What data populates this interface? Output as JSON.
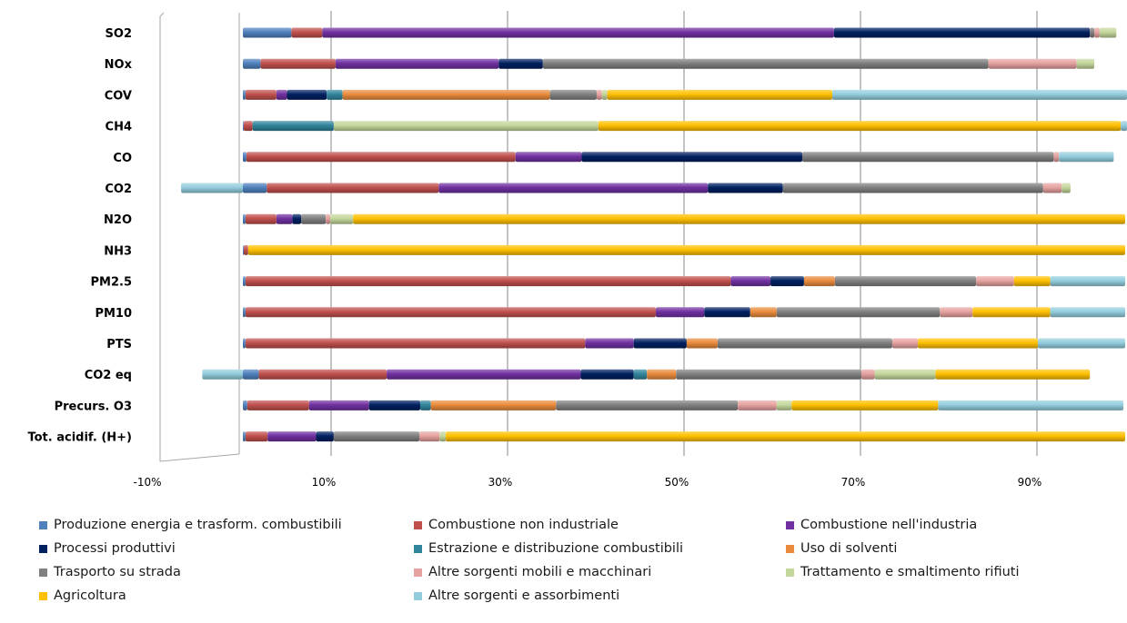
{
  "chart_data": {
    "type": "bar",
    "orientation": "horizontal",
    "stacked": "percent",
    "categories": [
      "SO2",
      "NOx",
      "COV",
      "CH4",
      "CO",
      "CO2",
      "N2O",
      "NH3",
      "PM2.5",
      "PM10",
      "PTS",
      "CO2 eq",
      "Precurs. O3",
      "Tot. acidif. (H+)"
    ],
    "xlim": [
      -10,
      100
    ],
    "x_ticks": [
      "-10%",
      "10%",
      "30%",
      "50%",
      "70%",
      "90%"
    ],
    "x_tick_values": [
      -10,
      10,
      30,
      50,
      70,
      90
    ],
    "grid": true,
    "legend_position": "bottom",
    "series": [
      {
        "name": "Produzione energia e trasform. combustibili",
        "color": "#4F81BD",
        "values": [
          5.5,
          2,
          0.3,
          0.1,
          0.4,
          2.7,
          0.3,
          0.1,
          0.3,
          0.3,
          0.3,
          1.8,
          0.5,
          0.3
        ]
      },
      {
        "name": "Combustione non industriale",
        "color": "#C0504D",
        "values": [
          3.5,
          8.5,
          3.5,
          1,
          30.5,
          19.5,
          3.5,
          0.5,
          55,
          46.5,
          38.5,
          14.5,
          7,
          2.5
        ]
      },
      {
        "name": "Combustione nell'industria",
        "color": "#7030A0",
        "values": [
          58,
          18.5,
          1.2,
          0,
          7.5,
          30.5,
          1.8,
          0,
          4.5,
          5.5,
          5.5,
          22,
          6.8,
          5.5
        ]
      },
      {
        "name": "Processi produttivi",
        "color": "#002060",
        "values": [
          29,
          5,
          4.5,
          0,
          25,
          8.5,
          1,
          0,
          3.8,
          5.2,
          6,
          6,
          5.8,
          2
        ]
      },
      {
        "name": "Estrazione e distribuzione combustibili",
        "color": "#31859C",
        "values": [
          0,
          0,
          1.8,
          9.2,
          0,
          0,
          0,
          0,
          0,
          0,
          0,
          1.5,
          1.2,
          0
        ]
      },
      {
        "name": "Uso di solventi",
        "color": "#E98B3C",
        "values": [
          0,
          0,
          23.5,
          0,
          0,
          0,
          0,
          0,
          3.5,
          3,
          3.5,
          3.3,
          14.2,
          0
        ]
      },
      {
        "name": "Trasporto su strada",
        "color": "#808080",
        "values": [
          0.5,
          50.5,
          5.3,
          0,
          28.5,
          29.5,
          2.8,
          0,
          16,
          18.5,
          19.8,
          21,
          20.6,
          9.7
        ]
      },
      {
        "name": "Altre sorgenti mobili e macchinari",
        "color": "#E6A2A0",
        "values": [
          0.6,
          10,
          0.6,
          0,
          0.6,
          2.1,
          0.5,
          0,
          4.3,
          3.7,
          2.9,
          1.5,
          4.4,
          2.3
        ]
      },
      {
        "name": "Trattamento e smaltimento rifiuti",
        "color": "#C4D79B",
        "values": [
          1.9,
          2,
          0.6,
          30,
          0,
          1,
          2.6,
          0,
          0,
          0,
          0,
          6.9,
          1.7,
          0.7
        ]
      },
      {
        "name": "Agricoltura",
        "color": "#FFC000",
        "values": [
          0,
          0,
          25.5,
          59.2,
          0,
          0,
          87.5,
          99.4,
          4.1,
          8.8,
          13.6,
          17.5,
          16.6,
          77
        ]
      },
      {
        "name": "Altre sorgenti e assorbimenti",
        "color": "#93CDDD",
        "values": [
          0,
          0,
          34,
          1.5,
          6.2,
          -7,
          0,
          0,
          8.5,
          8.5,
          9.9,
          -4.6,
          21,
          0
        ]
      }
    ]
  }
}
